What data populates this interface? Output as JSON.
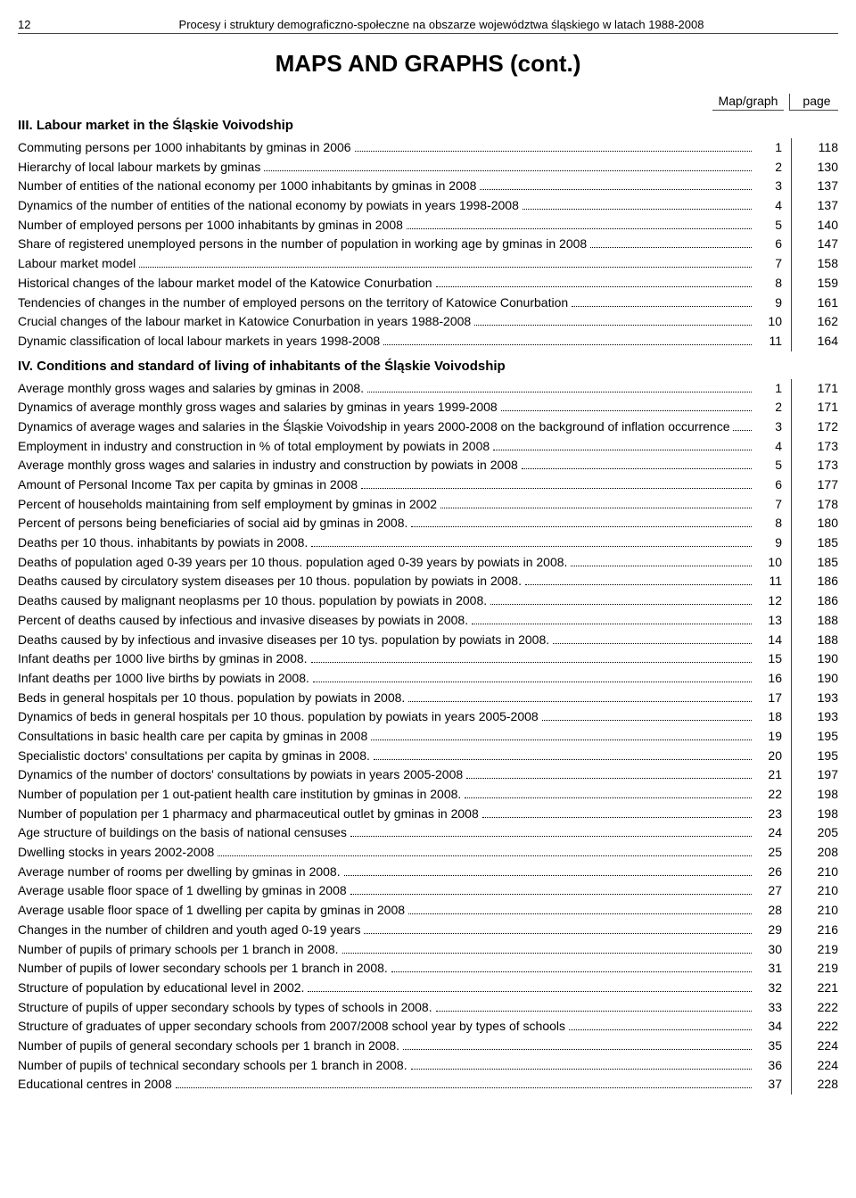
{
  "pageNumber": "12",
  "runningHeader": "Procesy i struktury demograficzno-społeczne na obszarze województwa śląskiego w latach 1988-2008",
  "mainTitle": "MAPS AND GRAPHS (cont.)",
  "columns": {
    "map": "Map/graph",
    "page": "page"
  },
  "sections": [
    {
      "title": "III. Labour market in the Śląskie Voivodship",
      "rows": [
        {
          "text": "Commuting persons per 1000 inhabitants by gminas in 2006",
          "map": "1",
          "page": "118"
        },
        {
          "text": "Hierarchy of local labour markets by gminas",
          "map": "2",
          "page": "130"
        },
        {
          "text": "Number of entities of the national economy per 1000 inhabitants by gminas in 2008",
          "map": "3",
          "page": "137"
        },
        {
          "text": "Dynamics of the number of entities of the national economy by powiats in years 1998-2008",
          "map": "4",
          "page": "137"
        },
        {
          "text": "Number of employed persons per 1000 inhabitants by gminas in 2008",
          "map": "5",
          "page": "140"
        },
        {
          "text": "Share of registered unemployed persons in the number of population in working age by gminas in 2008",
          "map": "6",
          "page": "147"
        },
        {
          "text": "Labour market model",
          "map": "7",
          "page": "158"
        },
        {
          "text": "Historical changes of the labour market model of the Katowice Conurbation",
          "map": "8",
          "page": "159"
        },
        {
          "text": "Tendencies of changes in the number of employed persons on the territory of Katowice Conurbation",
          "map": "9",
          "page": "161"
        },
        {
          "text": "Crucial changes of the labour market in Katowice Conurbation in years 1988-2008",
          "map": "10",
          "page": "162"
        },
        {
          "text": "Dynamic classification of local labour markets in years 1998-2008",
          "map": "11",
          "page": "164"
        }
      ]
    },
    {
      "title": "IV. Conditions and standard of living of inhabitants of the Śląskie Voivodship",
      "rows": [
        {
          "text": "Average monthly gross wages and salaries by gminas in 2008.",
          "map": "1",
          "page": "171"
        },
        {
          "text": "Dynamics of average monthly gross wages and salaries by gminas in years 1999-2008",
          "map": "2",
          "page": "171"
        },
        {
          "text": "Dynamics of average wages and salaries in the Śląskie Voivodship in years 2000-2008 on the background of inflation occurrence",
          "map": "3",
          "page": "172"
        },
        {
          "text": "Employment in industry and construction in % of total employment by powiats in 2008",
          "map": "4",
          "page": "173"
        },
        {
          "text": "Average monthly gross wages and salaries in industry and construction by powiats in 2008",
          "map": "5",
          "page": "173"
        },
        {
          "text": "Amount of Personal Income Tax per capita by gminas in 2008",
          "map": "6",
          "page": "177"
        },
        {
          "text": "Percent of households maintaining from self employment by gminas in 2002",
          "map": "7",
          "page": "178"
        },
        {
          "text": "Percent of persons being beneficiaries of social aid by gminas in 2008.",
          "map": "8",
          "page": "180"
        },
        {
          "text": "Deaths per 10 thous. inhabitants by powiats in 2008.",
          "map": "9",
          "page": "185"
        },
        {
          "text": "Deaths of population aged 0-39 years per 10 thous. population aged 0-39 years by powiats in 2008.",
          "map": "10",
          "page": "185"
        },
        {
          "text": "Deaths caused by circulatory system diseases per 10 thous. population by powiats in 2008.",
          "map": "11",
          "page": "186"
        },
        {
          "text": "Deaths caused by malignant neoplasms per 10 thous. population by powiats in 2008.",
          "map": "12",
          "page": "186"
        },
        {
          "text": "Percent of deaths caused by infectious and invasive diseases by powiats in 2008.",
          "map": "13",
          "page": "188"
        },
        {
          "text": "Deaths caused by by infectious and invasive diseases per 10 tys. population by powiats in 2008.",
          "map": "14",
          "page": "188"
        },
        {
          "text": "Infant deaths per 1000 live births by gminas in 2008.",
          "map": "15",
          "page": "190"
        },
        {
          "text": "Infant deaths per 1000 live births by powiats in 2008.",
          "map": "16",
          "page": "190"
        },
        {
          "text": "Beds in general hospitals per 10 thous. population by powiats in 2008.",
          "map": "17",
          "page": "193"
        },
        {
          "text": "Dynamics of beds in general hospitals per 10 thous. population by powiats in years 2005-2008",
          "map": "18",
          "page": "193"
        },
        {
          "text": "Consultations in basic health care per capita by gminas in 2008",
          "map": "19",
          "page": "195"
        },
        {
          "text": "Specialistic doctors' consultations per capita by gminas in 2008.",
          "map": "20",
          "page": "195"
        },
        {
          "text": "Dynamics of the number of doctors' consultations by powiats in years 2005-2008",
          "map": "21",
          "page": "197"
        },
        {
          "text": "Number of population per 1 out-patient health care institution by gminas in 2008.",
          "map": "22",
          "page": "198"
        },
        {
          "text": "Number of population per 1 pharmacy and pharmaceutical outlet by gminas in 2008",
          "map": "23",
          "page": "198"
        },
        {
          "text": "Age structure of buildings on the basis of national censuses",
          "map": "24",
          "page": "205"
        },
        {
          "text": "Dwelling stocks in years 2002-2008",
          "map": "25",
          "page": "208"
        },
        {
          "text": "Average number of rooms per dwelling by gminas in 2008.",
          "map": "26",
          "page": "210"
        },
        {
          "text": "Average usable floor space of 1 dwelling by gminas in 2008",
          "map": "27",
          "page": "210"
        },
        {
          "text": "Average usable floor space of 1 dwelling per capita by gminas in 2008",
          "map": "28",
          "page": "210"
        },
        {
          "text": "Changes in the number of children and youth aged 0-19 years",
          "map": "29",
          "page": "216"
        },
        {
          "text": "Number of pupils of primary schools per 1 branch in 2008.",
          "map": "30",
          "page": "219"
        },
        {
          "text": "Number of pupils of lower secondary schools per 1 branch in 2008.",
          "map": "31",
          "page": "219"
        },
        {
          "text": "Structure of population by educational level in 2002.",
          "map": "32",
          "page": "221"
        },
        {
          "text": "Structure of pupils of upper secondary schools by types of schools in 2008.",
          "map": "33",
          "page": "222"
        },
        {
          "text": "Structure of graduates of upper secondary schools from 2007/2008 school year by types of schools",
          "map": "34",
          "page": "222"
        },
        {
          "text": "Number of pupils of general secondary schools per 1 branch in 2008.",
          "map": "35",
          "page": "224"
        },
        {
          "text": "Number of pupils of technical secondary schools per 1 branch in 2008.",
          "map": "36",
          "page": "224"
        },
        {
          "text": "Educational centres in 2008",
          "map": "37",
          "page": "228"
        }
      ]
    }
  ]
}
